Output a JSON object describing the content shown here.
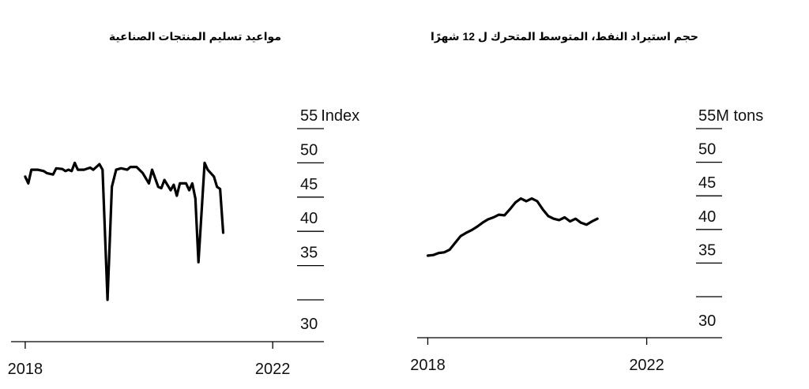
{
  "chart_data": [
    {
      "type": "line",
      "title": "مواعيد تسليم المنتجات الصناعية",
      "y_unit": "Index",
      "ylim": [
        30,
        55
      ],
      "y_ticks": [
        {
          "value": 55,
          "label": "55"
        },
        {
          "value": 50,
          "label": "50"
        },
        {
          "value": 45,
          "label": "45"
        },
        {
          "value": 40,
          "label": "40"
        },
        {
          "value": 35,
          "label": "35"
        },
        {
          "value": 30,
          "label": "30"
        }
      ],
      "x_ticks": [
        {
          "value": 2018,
          "label": "2018"
        },
        {
          "value": 2022,
          "label": "2022"
        }
      ],
      "xlim": [
        2017.95,
        2022.7
      ],
      "grid": false,
      "series": [
        {
          "color": "#000000",
          "points": [
            [
              2018.0,
              48.0
            ],
            [
              2018.05,
              47.0
            ],
            [
              2018.1,
              49.0
            ],
            [
              2018.2,
              49.0
            ],
            [
              2018.3,
              48.8
            ],
            [
              2018.35,
              48.5
            ],
            [
              2018.45,
              48.3
            ],
            [
              2018.5,
              49.2
            ],
            [
              2018.6,
              49.1
            ],
            [
              2018.65,
              48.8
            ],
            [
              2018.7,
              49.0
            ],
            [
              2018.75,
              48.8
            ],
            [
              2018.8,
              50.0
            ],
            [
              2018.85,
              49.0
            ],
            [
              2018.95,
              49.0
            ],
            [
              2019.05,
              49.3
            ],
            [
              2019.1,
              49.0
            ],
            [
              2019.2,
              49.8
            ],
            [
              2019.25,
              49.0
            ],
            [
              2019.33,
              30.0
            ],
            [
              2019.4,
              46.5
            ],
            [
              2019.47,
              49.0
            ],
            [
              2019.55,
              49.2
            ],
            [
              2019.65,
              49.0
            ],
            [
              2019.7,
              49.4
            ],
            [
              2019.8,
              49.4
            ],
            [
              2019.9,
              48.5
            ],
            [
              2020.0,
              47.0
            ],
            [
              2020.05,
              49.0
            ],
            [
              2020.15,
              46.5
            ],
            [
              2020.2,
              46.3
            ],
            [
              2020.25,
              47.5
            ],
            [
              2020.35,
              46.0
            ],
            [
              2020.4,
              46.8
            ],
            [
              2020.45,
              45.2
            ],
            [
              2020.5,
              47.0
            ],
            [
              2020.6,
              47.0
            ],
            [
              2020.65,
              46.0
            ],
            [
              2020.7,
              47.0
            ],
            [
              2020.75,
              44.8
            ],
            [
              2020.8,
              35.5
            ],
            [
              2020.9,
              50.0
            ],
            [
              2020.95,
              49.0
            ],
            [
              2021.05,
              48.0
            ],
            [
              2021.1,
              46.5
            ],
            [
              2021.15,
              46.2
            ],
            [
              2021.2,
              39.8
            ]
          ]
        }
      ]
    },
    {
      "type": "line",
      "title_parts": {
        "before": "حجم استيراد النفط، المتوسط المتحرك ل ",
        "number": "12",
        "after": " شهرًا"
      },
      "y_unit": "M tons",
      "ylim": [
        30,
        55
      ],
      "y_ticks": [
        {
          "value": 55,
          "label": "55"
        },
        {
          "value": 50,
          "label": "50"
        },
        {
          "value": 45,
          "label": "45"
        },
        {
          "value": 40,
          "label": "40"
        },
        {
          "value": 35,
          "label": "35"
        },
        {
          "value": 30,
          "label": "30"
        }
      ],
      "x_ticks": [
        {
          "value": 2018,
          "label": "2018"
        },
        {
          "value": 2022,
          "label": "2022"
        }
      ],
      "xlim": [
        2017.95,
        2022.8
      ],
      "grid": false,
      "series": [
        {
          "color": "#000000",
          "points": [
            [
              2018.0,
              36.1
            ],
            [
              2018.1,
              36.2
            ],
            [
              2018.2,
              36.5
            ],
            [
              2018.3,
              36.6
            ],
            [
              2018.4,
              37.0
            ],
            [
              2018.5,
              38.0
            ],
            [
              2018.6,
              39.0
            ],
            [
              2018.7,
              39.5
            ],
            [
              2018.8,
              39.9
            ],
            [
              2018.9,
              40.4
            ],
            [
              2019.0,
              41.0
            ],
            [
              2019.1,
              41.5
            ],
            [
              2019.2,
              41.8
            ],
            [
              2019.3,
              42.2
            ],
            [
              2019.4,
              42.1
            ],
            [
              2019.5,
              43.0
            ],
            [
              2019.6,
              44.0
            ],
            [
              2019.7,
              44.6
            ],
            [
              2019.8,
              44.2
            ],
            [
              2019.9,
              44.6
            ],
            [
              2020.0,
              44.2
            ],
            [
              2020.1,
              43.0
            ],
            [
              2020.2,
              42.0
            ],
            [
              2020.3,
              41.6
            ],
            [
              2020.4,
              41.4
            ],
            [
              2020.5,
              41.8
            ],
            [
              2020.6,
              41.2
            ],
            [
              2020.7,
              41.6
            ],
            [
              2020.8,
              41.0
            ],
            [
              2020.9,
              40.7
            ],
            [
              2021.0,
              41.2
            ],
            [
              2021.1,
              41.6
            ]
          ]
        }
      ]
    }
  ]
}
